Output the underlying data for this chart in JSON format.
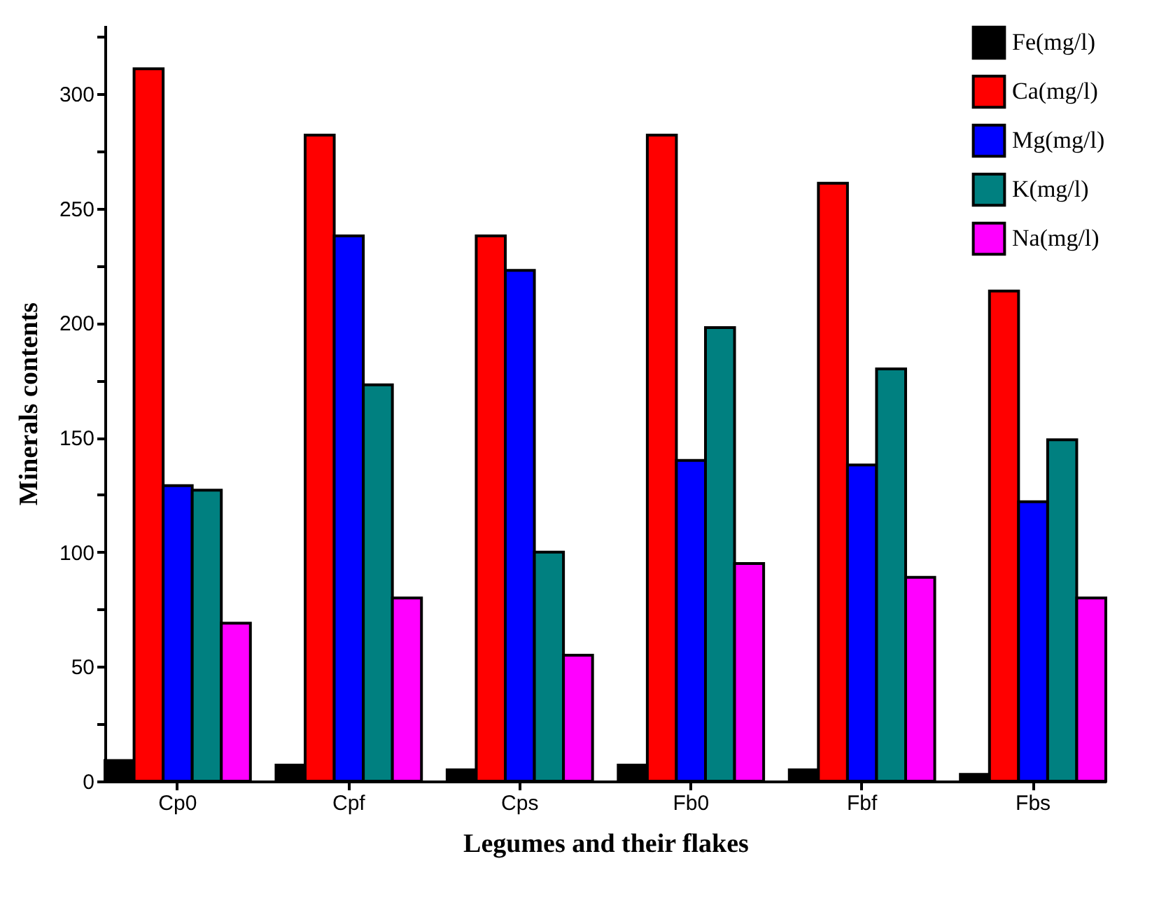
{
  "chart_data": {
    "type": "bar",
    "xlabel": "Legumes and their flakes",
    "ylabel": "Minerals contents",
    "categories": [
      "Cp0",
      "Cpf",
      "Cps",
      "Fb0",
      "Fbf",
      "Fbs"
    ],
    "series": [
      {
        "name": "Fe(mg/l)",
        "color": "#000000",
        "values": [
          9,
          7,
          5,
          7,
          5,
          3
        ]
      },
      {
        "name": "Ca(mg/l)",
        "color": "#ff0000",
        "values": [
          311,
          282,
          238,
          282,
          261,
          214
        ]
      },
      {
        "name": "Mg(mg/l)",
        "color": "#0000ff",
        "values": [
          129,
          238,
          223,
          140,
          138,
          122
        ]
      },
      {
        "name": "K(mg/l)",
        "color": "#008080",
        "values": [
          127,
          173,
          100,
          198,
          180,
          149
        ]
      },
      {
        "name": "Na(mg/l)",
        "color": "#ff00ff",
        "values": [
          69,
          80,
          55,
          95,
          89,
          80
        ]
      }
    ],
    "ylim": [
      0,
      330
    ],
    "yticks": [
      0,
      {
        "value": 25,
        "label": null
      },
      50,
      {
        "value": 75,
        "label": null
      },
      100,
      {
        "value": 125,
        "label": null
      },
      150,
      {
        "value": 175,
        "label": null
      },
      200,
      {
        "value": 225,
        "label": null
      },
      250,
      {
        "value": 275,
        "label": null
      },
      300,
      {
        "value": 325,
        "label": null
      }
    ],
    "grid": false,
    "legend": "top right"
  }
}
